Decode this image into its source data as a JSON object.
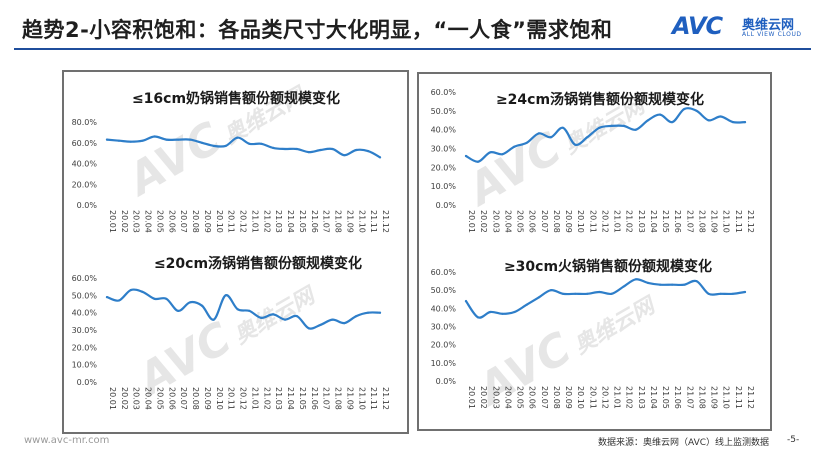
{
  "header": {
    "title": "趋势2-小容积饱和：各品类尺寸大化明显，“一人食”需求饱和",
    "logo_word": "AVC",
    "logo_cn": "奥维云网",
    "logo_en": "ALL VIEW CLOUD"
  },
  "watermark": {
    "word": "AVC",
    "cn": "奥维云网",
    "en": "ALL VIEW CLOUD"
  },
  "footer": {
    "website": "www.avc-mr.com",
    "source": "数据来源：奥维云网（AVC）线上监测数据",
    "page": "-5-"
  },
  "colors": {
    "line": "#2e7ec9",
    "accent": "#1f4e9c"
  },
  "chart_data": [
    {
      "type": "line",
      "title": "≤16cm奶锅销售额份额规模变化",
      "categories": [
        "20.01",
        "20.02",
        "20.03",
        "20.04",
        "20.05",
        "20.06",
        "20.07",
        "20.08",
        "20.09",
        "20.10",
        "20.11",
        "20.12",
        "21.01",
        "21.02",
        "21.03",
        "21.04",
        "21.05",
        "21.06",
        "21.07",
        "21.08",
        "21.09",
        "21.10",
        "21.11",
        "21.12"
      ],
      "yticks": [
        "0.0%",
        "20.0%",
        "40.0%",
        "60.0%",
        "80.0%"
      ],
      "ylim": [
        0,
        80
      ],
      "values": [
        63,
        62,
        61,
        62,
        66,
        63,
        63,
        63,
        60,
        57,
        57,
        65,
        59,
        59,
        55,
        54,
        54,
        51,
        53,
        54,
        48,
        53,
        52,
        46
      ]
    },
    {
      "type": "line",
      "title": "≤20cm汤锅销售额份额规模变化",
      "categories": [
        "20.01",
        "20.02",
        "20.03",
        "20.04",
        "20.05",
        "20.06",
        "20.07",
        "20.08",
        "20.09",
        "20.10",
        "20.11",
        "20.12",
        "21.01",
        "21.02",
        "21.03",
        "21.04",
        "21.05",
        "21.06",
        "21.07",
        "21.08",
        "21.09",
        "21.10",
        "21.11",
        "21.12"
      ],
      "yticks": [
        "0.0%",
        "10.0%",
        "20.0%",
        "30.0%",
        "40.0%",
        "50.0%",
        "60.0%"
      ],
      "ylim": [
        0,
        60
      ],
      "values": [
        49,
        47,
        53,
        52,
        48,
        48,
        41,
        46,
        44,
        36,
        50,
        42,
        41,
        37,
        39,
        36,
        38,
        31,
        33,
        36,
        34,
        38,
        40,
        40
      ]
    },
    {
      "type": "line",
      "title": "≥24cm汤锅销售额份额规模变化",
      "categories": [
        "20.01",
        "20.02",
        "20.03",
        "20.04",
        "20.05",
        "20.06",
        "20.07",
        "20.08",
        "20.09",
        "20.10",
        "20.11",
        "20.12",
        "21.01",
        "21.02",
        "21.03",
        "21.04",
        "21.05",
        "21.06",
        "21.07",
        "21.08",
        "21.09",
        "21.10",
        "21.11",
        "21.12"
      ],
      "yticks": [
        "0.0%",
        "10.0%",
        "20.0%",
        "30.0%",
        "40.0%",
        "50.0%",
        "60.0%"
      ],
      "ylim": [
        0,
        60
      ],
      "values": [
        26,
        23,
        28,
        27,
        31,
        33,
        38,
        36,
        41,
        32,
        36,
        41,
        42,
        42,
        40,
        45,
        48,
        44,
        51,
        50,
        45,
        47,
        44,
        44
      ]
    },
    {
      "type": "line",
      "title": "≥30cm火锅销售额份额规模变化",
      "categories": [
        "20.01",
        "20.02",
        "20.03",
        "20.04",
        "20.05",
        "20.06",
        "20.07",
        "20.08",
        "20.09",
        "20.10",
        "20.11",
        "20.12",
        "21.01",
        "21.02",
        "21.03",
        "21.04",
        "21.05",
        "21.06",
        "21.07",
        "21.08",
        "21.09",
        "21.10",
        "21.11",
        "21.12"
      ],
      "yticks": [
        "0.0%",
        "10.0%",
        "20.0%",
        "30.0%",
        "40.0%",
        "50.0%",
        "60.0%"
      ],
      "ylim": [
        0,
        60
      ],
      "values": [
        44,
        35,
        38,
        37,
        38,
        42,
        46,
        50,
        48,
        48,
        48,
        49,
        48,
        52,
        56,
        54,
        53,
        53,
        53,
        55,
        48,
        48,
        48,
        49
      ]
    }
  ]
}
